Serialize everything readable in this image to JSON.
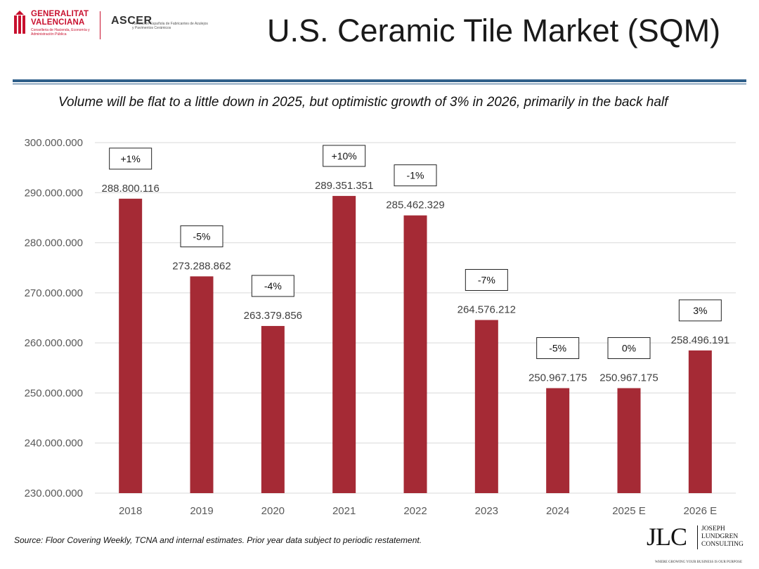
{
  "header": {
    "title": "U.S. Ceramic Tile Market (SQM)",
    "logo_gv_title_1": "GENERALITAT",
    "logo_gv_title_2": "VALENCIANA",
    "logo_gv_sub": "Conselleria de Hacienda, Economía y Administración Pública",
    "logo_ascer_brand": "ASCER",
    "logo_ascer_sub": "Asociación Española de Fabricantes de Azulejos y Pavimentos Cerámicos"
  },
  "subtitle": "Volume will be flat to a little down in 2025, but optimistic growth of 3% in 2026, primarily in the back half",
  "footer": {
    "source": "Source: Floor Covering Weekly, TCNA and internal estimates. Prior year data subject to periodic restatement.",
    "jlc_letters": "JLC",
    "jlc_name_1": "JOSEPH",
    "jlc_name_2": "LUNDGREN",
    "jlc_name_3": "CONSULTING",
    "jlc_tagline": "WHERE GROWING YOUR BUSINESS IS OUR PURPOSE"
  },
  "colors": {
    "bar": "#a52a35",
    "rule": "#2f5f8a",
    "grid": "#d9d9d9",
    "axis_text": "#595959"
  },
  "chart_data": {
    "type": "bar",
    "categories": [
      "2018",
      "2019",
      "2020",
      "2021",
      "2022",
      "2023",
      "2024",
      "2025 E",
      "2026 E"
    ],
    "values": [
      288800116,
      273288862,
      263379856,
      289351351,
      285462329,
      264576212,
      250967175,
      250967175,
      258496191
    ],
    "value_labels": [
      "288.800.116",
      "273.288.862",
      "263.379.856",
      "289.351.351",
      "285.462.329",
      "264.576.212",
      "250.967.175",
      "250.967.175",
      "258.496.191"
    ],
    "growth_labels": [
      "+1%",
      "-5%",
      "-4%",
      "+10%",
      "-1%",
      "-7%",
      "-5%",
      "0%",
      "3%"
    ],
    "ylim": [
      230000000,
      300000000
    ],
    "yticks": [
      230000000,
      240000000,
      250000000,
      260000000,
      270000000,
      280000000,
      290000000,
      300000000
    ],
    "ytick_labels": [
      "230.000.000",
      "240.000.000",
      "250.000.000",
      "260.000.000",
      "270.000.000",
      "280.000.000",
      "290.000.000",
      "300.000.000"
    ],
    "grid": true,
    "legend": "none"
  }
}
